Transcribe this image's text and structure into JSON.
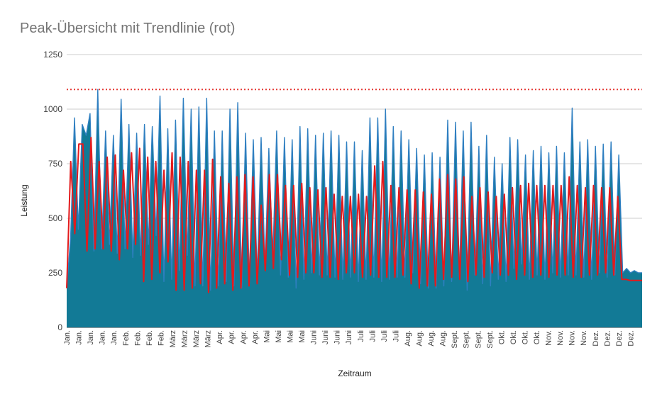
{
  "chart_data": {
    "type": "area",
    "title": "Peak-Übersicht mit Trendlinie (rot)",
    "xlabel": "Zeitraum",
    "ylabel": "Leistung",
    "ylim": [
      0,
      1250
    ],
    "yticks": [
      0,
      250,
      500,
      750,
      1000,
      1250
    ],
    "grid": true,
    "x_tick_labels": [
      "Jan.",
      "Jan.",
      "Jan.",
      "Jan.",
      "Jan.",
      "Feb.",
      "Feb.",
      "Feb.",
      "Feb.",
      "März",
      "März",
      "März",
      "März",
      "Apr.",
      "Apr.",
      "Apr.",
      "Apr.",
      "Mai",
      "Mai",
      "Mai",
      "Mai",
      "Juni",
      "Juni",
      "Juni",
      "Juni",
      "Juli",
      "Juli",
      "Juli",
      "Juli",
      "Aug.",
      "Aug.",
      "Aug.",
      "Aug.",
      "Sept.",
      "Sept.",
      "Sept.",
      "Sept.",
      "Okt.",
      "Okt.",
      "Okt.",
      "Okt.",
      "Nov.",
      "Nov.",
      "Nov.",
      "Nov.",
      "Dez.",
      "Dez.",
      "Dez.",
      "Dez."
    ],
    "reference_line": {
      "value": 1090,
      "style": "dotted",
      "color": "#e53935"
    },
    "series": [
      {
        "name": "",
        "kind": "area",
        "color": "#127a96",
        "line_color": "#2f7fc1",
        "values": [
          180,
          410,
          960,
          450,
          930,
          880,
          980,
          350,
          1090,
          360,
          900,
          380,
          880,
          340,
          1045,
          360,
          930,
          320,
          890,
          330,
          930,
          380,
          920,
          420,
          1060,
          210,
          910,
          220,
          950,
          260,
          1050,
          330,
          1000,
          190,
          1010,
          190,
          1050,
          170,
          900,
          190,
          900,
          210,
          1000,
          190,
          1030,
          180,
          890,
          200,
          860,
          230,
          870,
          280,
          820,
          310,
          900,
          240,
          870,
          230,
          860,
          180,
          920,
          220,
          910,
          250,
          880,
          240,
          890,
          240,
          900,
          230,
          880,
          220,
          850,
          230,
          850,
          210,
          810,
          220,
          960,
          230,
          960,
          210,
          1000,
          220,
          920,
          230,
          900,
          230,
          860,
          250,
          820,
          200,
          790,
          180,
          800,
          180,
          780,
          190,
          950,
          210,
          940,
          230,
          900,
          170,
          940,
          240,
          830,
          200,
          880,
          190,
          780,
          220,
          750,
          210,
          870,
          270,
          860,
          290,
          790,
          220,
          810,
          240,
          830,
          220,
          800,
          250,
          830,
          230,
          800,
          240,
          1005,
          240,
          850,
          230,
          860,
          220,
          830,
          250,
          840,
          230,
          850,
          240,
          790,
          250,
          270,
          250,
          260,
          250,
          250
        ]
      },
      {
        "name": "",
        "kind": "line",
        "color": "#e31a1c",
        "values": [
          180,
          760,
          430,
          840,
          840,
          350,
          870,
          360,
          760,
          360,
          780,
          350,
          790,
          310,
          720,
          360,
          800,
          380,
          820,
          210,
          780,
          220,
          760,
          250,
          720,
          300,
          800,
          170,
          780,
          170,
          760,
          180,
          720,
          200,
          720,
          160,
          770,
          180,
          690,
          200,
          660,
          170,
          690,
          180,
          700,
          190,
          690,
          200,
          560,
          260,
          700,
          270,
          700,
          310,
          650,
          240,
          650,
          230,
          660,
          250,
          640,
          250,
          630,
          230,
          640,
          230,
          610,
          220,
          600,
          250,
          600,
          250,
          610,
          230,
          600,
          240,
          740,
          230,
          760,
          230,
          650,
          230,
          640,
          240,
          630,
          200,
          630,
          180,
          620,
          190,
          610,
          190,
          680,
          220,
          700,
          230,
          680,
          220,
          690,
          210,
          600,
          240,
          640,
          230,
          620,
          250,
          600,
          240,
          610,
          240,
          640,
          220,
          650,
          240,
          660,
          230,
          650,
          240,
          650,
          230,
          650,
          240,
          650,
          240,
          690,
          230,
          650,
          230,
          640,
          240,
          650,
          240,
          640,
          250,
          640,
          240,
          600,
          220,
          220,
          215,
          215,
          215,
          215
        ]
      }
    ]
  }
}
